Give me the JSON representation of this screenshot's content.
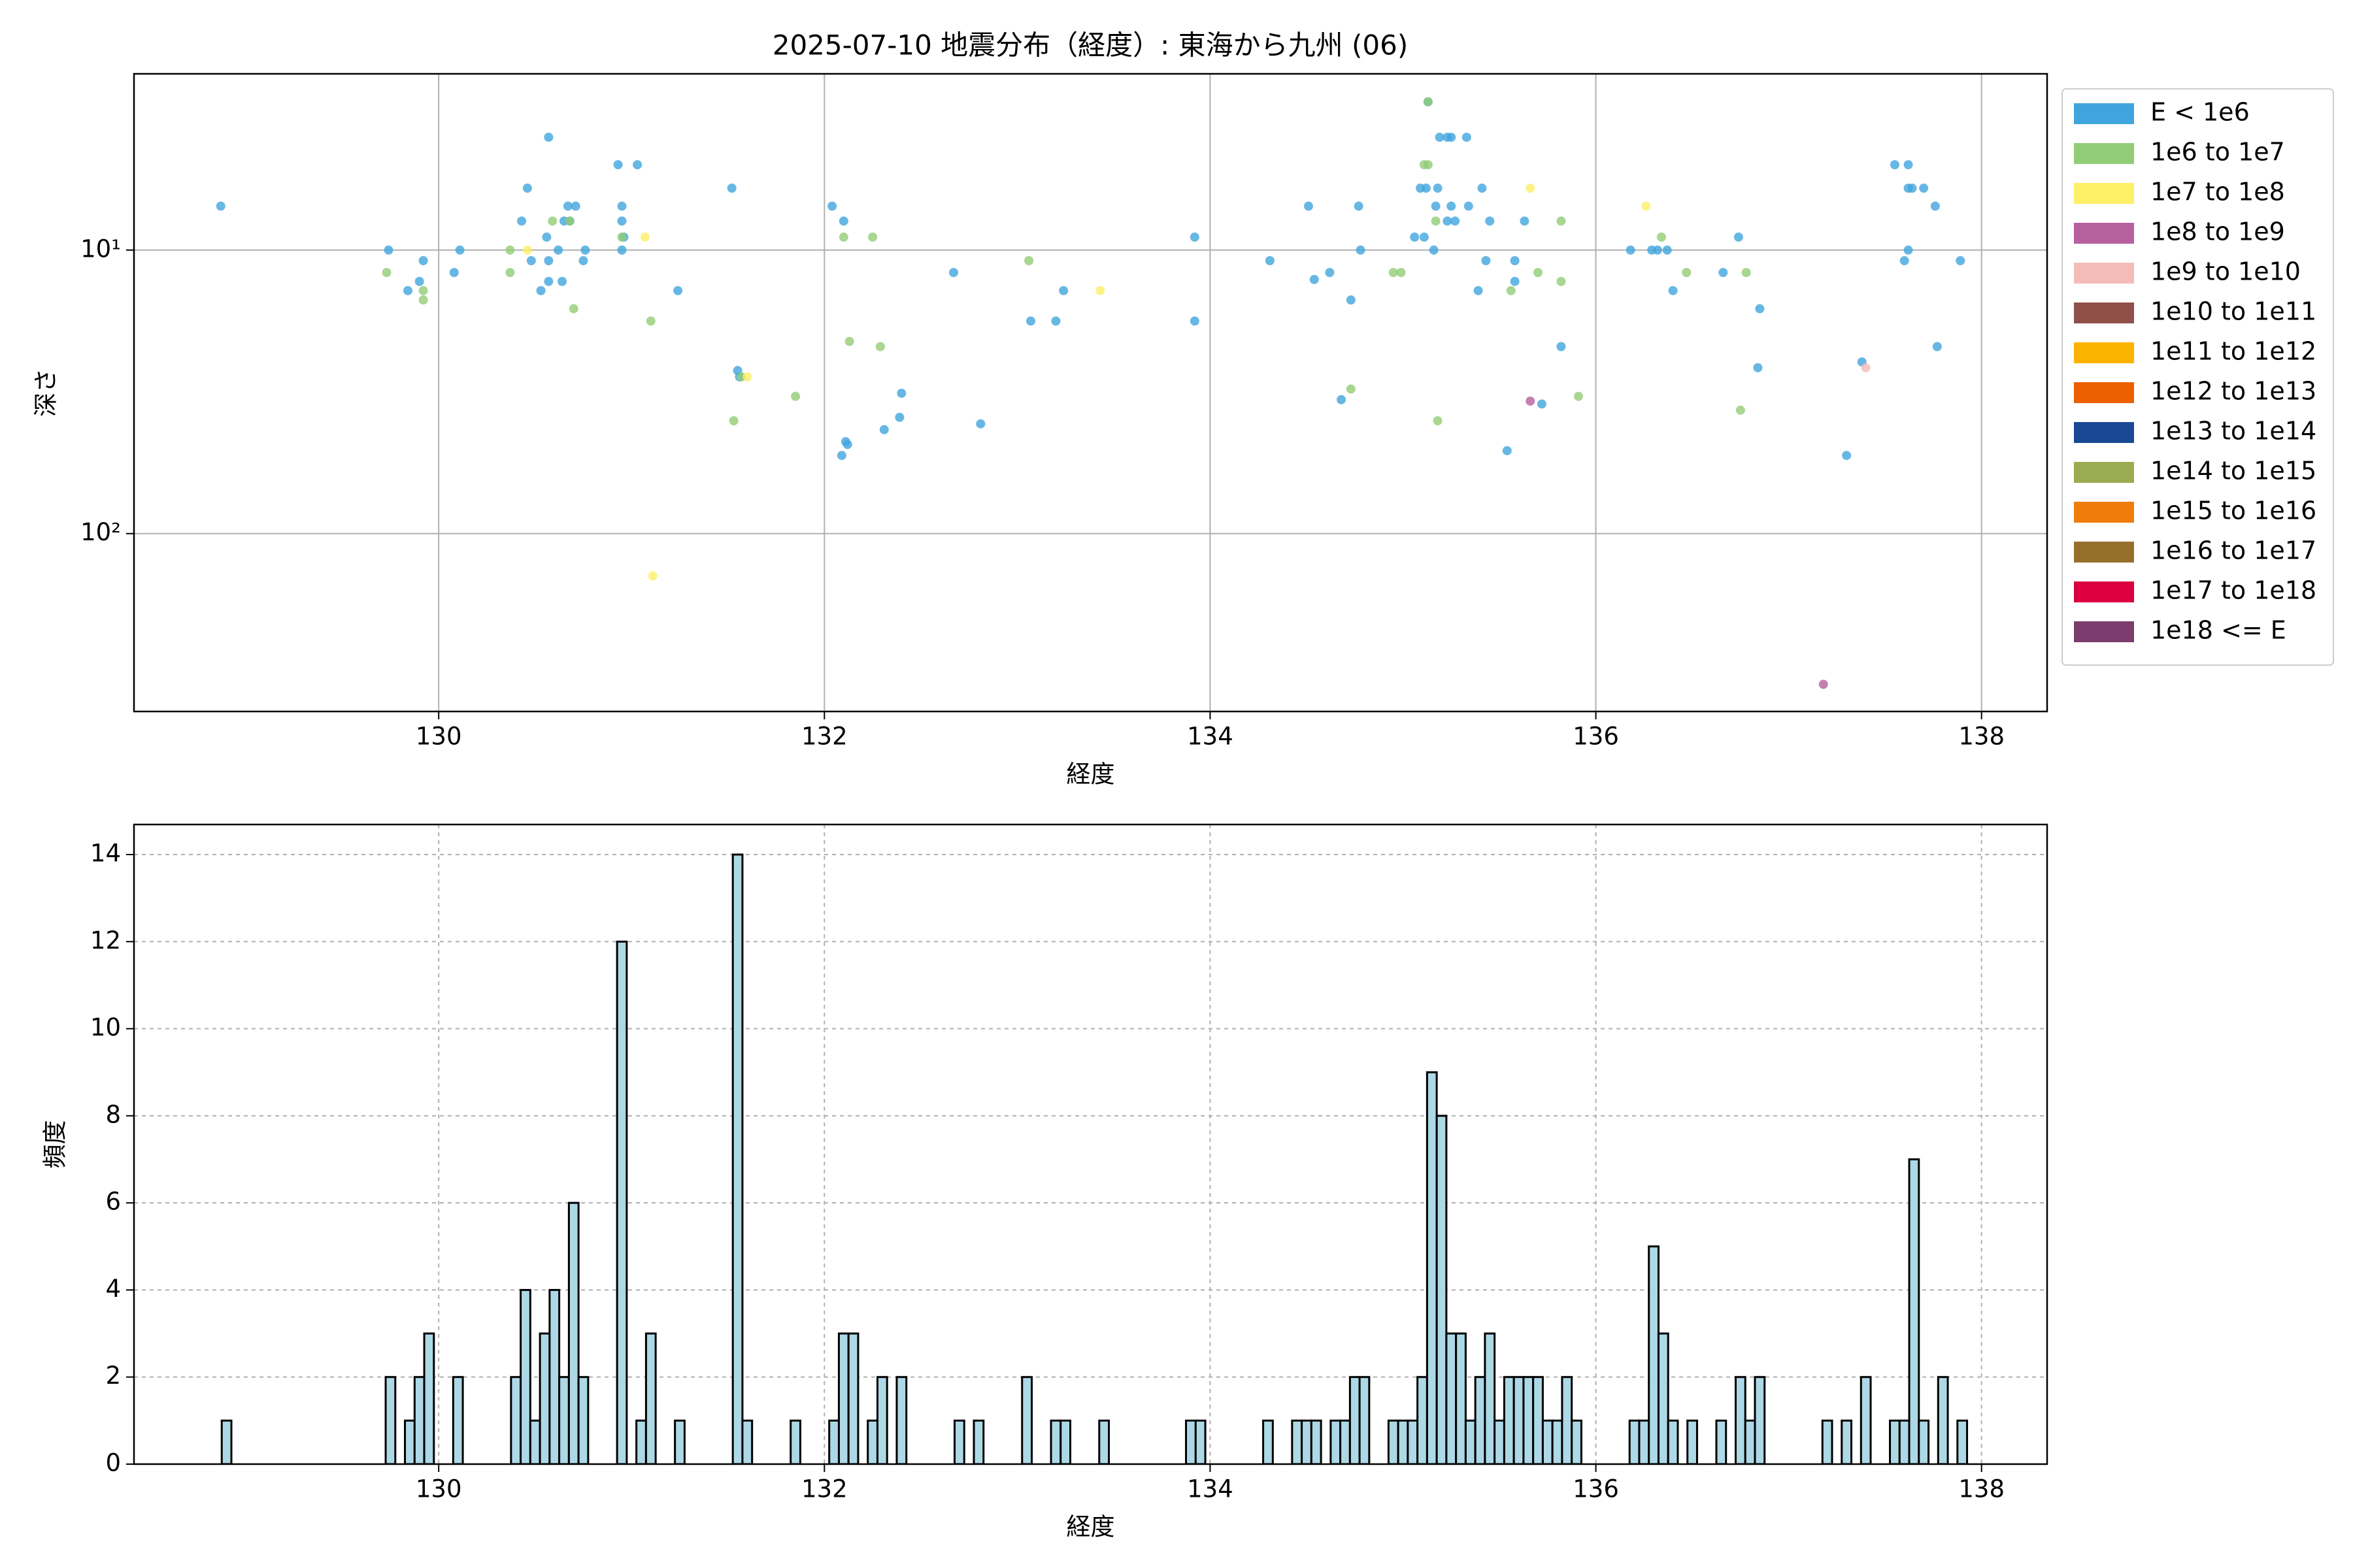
{
  "chart_data": [
    {
      "type": "scatter",
      "title": "2025-07-10 地震分布（経度）: 東海から九州 (06)",
      "xlabel": "経度",
      "ylabel": "深さ",
      "xlim": [
        128.42,
        138.34
      ],
      "xticks": [
        130,
        132,
        134,
        136,
        138
      ],
      "yscale": "log",
      "ylim": [
        424,
        2.39
      ],
      "yticks": [
        {
          "value": 10,
          "label": "10¹"
        },
        {
          "value": 100,
          "label": "10²"
        }
      ],
      "grid": true,
      "grid_linestyle": "solid",
      "legend": "right",
      "series": [
        {
          "name": "E < 1e6",
          "color": "#41a5dd",
          "x": [
            128.87,
            129.74,
            129.92,
            129.84,
            129.9,
            130.08,
            130.11,
            130.43,
            130.46,
            130.57,
            130.48,
            130.56,
            130.57,
            130.57,
            130.53,
            130.62,
            130.64,
            130.65,
            130.67,
            130.71,
            130.68,
            130.76,
            130.75,
            130.93,
            131.03,
            130.95,
            130.95,
            130.95,
            130.96,
            131.24,
            131.52,
            131.55,
            131.56,
            132.04,
            132.1,
            132.09,
            132.12,
            132.11,
            132.4,
            132.39,
            132.31,
            132.67,
            132.81,
            133.07,
            133.2,
            133.24,
            133.92,
            133.92,
            134.31,
            134.51,
            134.54,
            134.62,
            134.68,
            134.73,
            134.77,
            134.78,
            135.06,
            135.09,
            135.11,
            135.12,
            135.13,
            135.16,
            135.17,
            135.18,
            135.19,
            135.23,
            135.25,
            135.23,
            135.25,
            135.27,
            135.33,
            135.34,
            135.39,
            135.41,
            135.43,
            135.45,
            135.54,
            135.58,
            135.58,
            135.63,
            135.72,
            135.82,
            136.18,
            136.29,
            136.32,
            136.37,
            136.4,
            136.66,
            136.74,
            136.85,
            136.84,
            137.3,
            137.38,
            137.55,
            137.62,
            137.62,
            137.64,
            137.7,
            137.76,
            137.6,
            137.62,
            137.77,
            137.89
          ],
          "y": [
            7.0,
            10,
            10.9,
            13.9,
            12.9,
            12.0,
            10,
            7.9,
            6.05,
            4.0,
            10.9,
            9.0,
            10.9,
            12.9,
            13.9,
            10,
            12.9,
            7.9,
            7.0,
            7.0,
            7.9,
            10,
            10.9,
            5.0,
            5.0,
            7.0,
            7.9,
            10,
            9.0,
            13.9,
            6.05,
            26.6,
            28,
            7.0,
            7.9,
            53,
            48.5,
            47.4,
            32,
            38.9,
            43,
            12.0,
            41,
            17.8,
            17.8,
            13.9,
            9.0,
            17.8,
            10.9,
            7.0,
            12.7,
            12.0,
            33.7,
            15.0,
            7.0,
            10,
            9.0,
            6.05,
            9.0,
            6.05,
            3.0,
            10,
            7.0,
            6.05,
            4.0,
            4.0,
            4.0,
            7.9,
            7.0,
            7.9,
            4.0,
            7.0,
            13.9,
            6.05,
            10.9,
            7.9,
            51,
            12.9,
            10.9,
            7.9,
            34.9,
            21.9,
            10,
            10,
            10,
            10,
            13.9,
            12.0,
            9.0,
            16.1,
            26,
            53,
            24.8,
            5.0,
            5.0,
            6.05,
            6.05,
            6.05,
            7.0,
            10.9,
            10,
            21.9,
            10.9
          ]
        },
        {
          "name": "1e6 to 1e7",
          "color": "#93cc76",
          "x": [
            129.73,
            129.92,
            129.92,
            130.37,
            130.37,
            130.59,
            130.68,
            130.7,
            130.95,
            131.1,
            131.53,
            131.57,
            131.85,
            132.1,
            132.25,
            132.13,
            132.29,
            133.06,
            134.73,
            134.95,
            134.99,
            135.13,
            135.17,
            135.18,
            135.56,
            135.7,
            135.82,
            135.82,
            135.91,
            136.34,
            136.47,
            136.78,
            136.75,
            135.13,
            135.11
          ],
          "y": [
            12.0,
            13.9,
            15.0,
            10,
            12.0,
            7.9,
            7.9,
            16.1,
            9.0,
            17.8,
            40,
            28,
            32.8,
            9.0,
            9.0,
            21,
            21.9,
            10.9,
            30.9,
            12.0,
            12.0,
            5.0,
            7.9,
            40,
            13.9,
            12.0,
            12.9,
            7.9,
            32.8,
            9.0,
            12.0,
            12.0,
            36.7,
            3.0,
            5.0
          ]
        },
        {
          "name": "1e7 to 1e8",
          "color": "#fdef66",
          "x": [
            130.46,
            131.07,
            131.6,
            131.11,
            133.43,
            135.66,
            136.26
          ],
          "y": [
            10,
            9.0,
            28,
            141,
            13.9,
            6.05,
            7.0
          ]
        },
        {
          "name": "1e8 to 1e9",
          "color": "#b7609e",
          "x": [
            135.66,
            137.18
          ],
          "y": [
            34.1,
            340
          ]
        },
        {
          "name": "1e9 to 1e10",
          "color": "#f4bcb8",
          "x": [
            137.4
          ],
          "y": [
            26
          ]
        },
        {
          "name": "1e10 to 1e11",
          "color": "#8f5049",
          "x": [],
          "y": []
        },
        {
          "name": "1e11 to 1e12",
          "color": "#fcb300",
          "x": [],
          "y": []
        },
        {
          "name": "1e12 to 1e13",
          "color": "#ed6000",
          "x": [],
          "y": []
        },
        {
          "name": "1e13 to 1e14",
          "color": "#1a4894",
          "x": [],
          "y": []
        },
        {
          "name": "1e14 to 1e15",
          "color": "#9aab52",
          "x": [],
          "y": []
        },
        {
          "name": "1e15 to 1e16",
          "color": "#f07d0a",
          "x": [],
          "y": []
        },
        {
          "name": "1e16 to 1e17",
          "color": "#956f2b",
          "x": [],
          "y": []
        },
        {
          "name": "1e17 to 1e18",
          "color": "#dc0040",
          "x": [],
          "y": []
        },
        {
          "name": "1e18 <= E",
          "color": "#7b3d6e",
          "x": [],
          "y": []
        }
      ]
    },
    {
      "type": "histogram",
      "xlabel": "経度",
      "ylabel": "頻度",
      "color": "#add8e6",
      "edgecolor": "#000000",
      "xlim": [
        128.42,
        138.34
      ],
      "xticks": [
        130,
        132,
        134,
        136,
        138
      ],
      "ylim": [
        0,
        14.69
      ],
      "yticks": [
        0,
        2,
        4,
        6,
        8,
        10,
        12,
        14
      ],
      "grid": true,
      "grid_linestyle": "dashed",
      "bins": [
        128.875,
        128.925,
        128.975,
        129.025,
        129.075,
        129.125,
        129.175,
        129.225,
        129.275,
        129.325,
        129.375,
        129.425,
        129.475,
        129.525,
        129.575,
        129.625,
        129.675,
        129.725,
        129.775,
        129.825,
        129.875,
        129.925,
        129.975,
        130.025,
        130.075,
        130.125,
        130.175,
        130.225,
        130.275,
        130.325,
        130.375,
        130.425,
        130.475,
        130.525,
        130.575,
        130.625,
        130.675,
        130.725,
        130.775,
        130.825,
        130.875,
        130.925,
        130.975,
        131.025,
        131.075,
        131.125,
        131.175,
        131.225,
        131.275,
        131.325,
        131.375,
        131.425,
        131.475,
        131.525,
        131.575,
        131.625,
        131.675,
        131.725,
        131.775,
        131.825,
        131.875,
        131.925,
        131.975,
        132.025,
        132.075,
        132.125,
        132.175,
        132.225,
        132.275,
        132.325,
        132.375,
        132.425,
        132.475,
        132.525,
        132.575,
        132.625,
        132.675,
        132.725,
        132.775,
        132.825,
        132.875,
        132.925,
        132.975,
        133.025,
        133.075,
        133.125,
        133.175,
        133.225,
        133.275,
        133.325,
        133.375,
        133.425,
        133.475,
        133.525,
        133.575,
        133.625,
        133.675,
        133.725,
        133.775,
        133.825,
        133.875,
        133.925,
        133.975,
        134.025,
        134.075,
        134.125,
        134.175,
        134.225,
        134.275,
        134.325,
        134.375,
        134.425,
        134.475,
        134.525,
        134.575,
        134.625,
        134.675,
        134.725,
        134.775,
        134.825,
        134.875,
        134.925,
        134.975,
        135.025,
        135.075,
        135.125,
        135.175,
        135.225,
        135.275,
        135.325,
        135.375,
        135.425,
        135.475,
        135.525,
        135.575,
        135.625,
        135.675,
        135.725,
        135.775,
        135.825,
        135.875,
        135.925,
        135.975,
        136.025,
        136.075,
        136.125,
        136.175,
        136.225,
        136.275,
        136.325,
        136.375,
        136.425,
        136.475,
        136.525,
        136.575,
        136.625,
        136.675,
        136.725,
        136.775,
        136.825,
        136.875,
        136.925,
        136.975,
        137.025,
        137.075,
        137.125,
        137.175,
        137.225,
        137.275,
        137.325,
        137.375,
        137.425,
        137.475,
        137.525,
        137.575,
        137.625,
        137.675,
        137.725,
        137.775,
        137.825,
        137.875,
        137.925
      ],
      "values": [
        1,
        0,
        0,
        0,
        0,
        0,
        0,
        0,
        0,
        0,
        0,
        0,
        0,
        0,
        0,
        0,
        0,
        2,
        0,
        1,
        2,
        3,
        0,
        0,
        2,
        0,
        0,
        0,
        0,
        0,
        2,
        4,
        1,
        3,
        4,
        2,
        6,
        2,
        0,
        0,
        0,
        12,
        0,
        1,
        3,
        0,
        0,
        1,
        0,
        0,
        0,
        0,
        0,
        14,
        1,
        0,
        0,
        0,
        0,
        1,
        0,
        0,
        0,
        1,
        3,
        3,
        0,
        1,
        2,
        0,
        2,
        0,
        0,
        0,
        0,
        0,
        1,
        0,
        1,
        0,
        0,
        0,
        0,
        2,
        0,
        0,
        1,
        1,
        0,
        0,
        0,
        1,
        0,
        0,
        0,
        0,
        0,
        0,
        0,
        0,
        1,
        1,
        0,
        0,
        0,
        0,
        0,
        0,
        1,
        0,
        0,
        1,
        1,
        1,
        0,
        1,
        1,
        2,
        2,
        0,
        0,
        1,
        1,
        1,
        2,
        9,
        8,
        3,
        3,
        1,
        2,
        3,
        1,
        2,
        2,
        2,
        2,
        1,
        1,
        2,
        1,
        0,
        0,
        0,
        0,
        0,
        1,
        1,
        5,
        3,
        1,
        0,
        1,
        0,
        0,
        1,
        0,
        2,
        1,
        2,
        0,
        0,
        0,
        0,
        0,
        0,
        1,
        0,
        1,
        0,
        2,
        0,
        0,
        1,
        1,
        7,
        1,
        0,
        2,
        0,
        1
      ]
    }
  ]
}
